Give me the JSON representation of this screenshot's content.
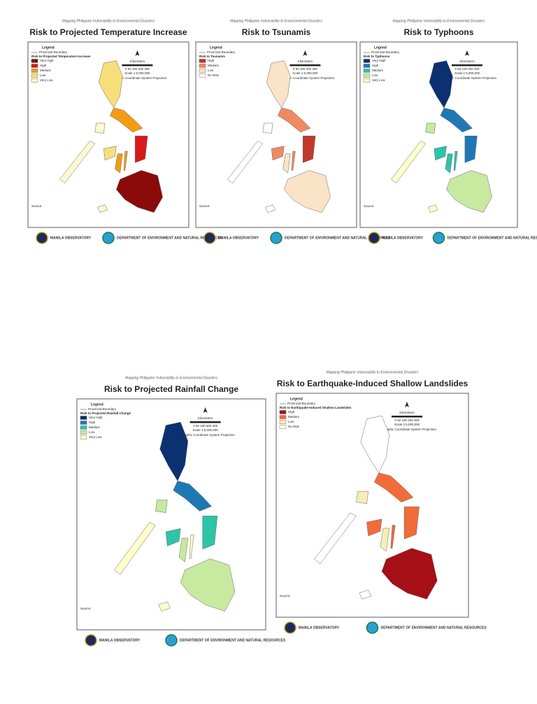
{
  "panels": [
    {
      "header": "Mapping Philippine Vulnerability to Environmental Disasters",
      "title": "Risk to Projected Temperature Increase",
      "legend": {
        "heading": "Legend",
        "boundary": "Provincial Boundary",
        "title": "Risk to Projected Temperature Increase",
        "items": [
          {
            "label": "Very High",
            "color": "#8b0a0a"
          },
          {
            "label": "High",
            "color": "#d7191c"
          },
          {
            "label": "Medium",
            "color": "#f39c12"
          },
          {
            "label": "Low",
            "color": "#f7df7a"
          },
          {
            "label": "Very Low",
            "color": "#fdf9d2"
          }
        ]
      },
      "scale": {
        "units": "Kilometers",
        "ticks": "0 50 100 200 300",
        "ratio": "Scale 1:5,000,000",
        "projection": "Geographic Coordinate System Projection"
      },
      "source": "Source:",
      "logos": [
        "MANILA OBSERVATORY",
        "DEPARTMENT OF ENVIRONMENT AND NATURAL RESOURCES"
      ]
    },
    {
      "header": "Mapping Philippine Vulnerability to Environmental Disasters",
      "title": "Risk to Tsunamis",
      "legend": {
        "heading": "Legend",
        "boundary": "Provincial Boundary",
        "title": "Risk to Tsunamis",
        "items": [
          {
            "label": "High",
            "color": "#c0392b"
          },
          {
            "label": "Medium",
            "color": "#ef8a62"
          },
          {
            "label": "Low",
            "color": "#fbe3c8"
          },
          {
            "label": "No Risk",
            "color": "#ffffff"
          }
        ]
      },
      "scale": {
        "units": "Kilometers",
        "ticks": "0 50 100 200 300",
        "ratio": "Scale 1:5,000,000",
        "projection": "Geographic Coordinate System Projection"
      },
      "source": "Source:",
      "logos": [
        "MANILA OBSERVATORY",
        "DEPARTMENT OF ENVIRONMENT AND NATURAL RESOURCES"
      ]
    },
    {
      "header": "Mapping Philippine Vulnerability to Environmental Disasters",
      "title": "Risk to Typhoons",
      "legend": {
        "heading": "Legend",
        "boundary": "Provincial Boundary",
        "title": "Risk to Typhoons",
        "items": [
          {
            "label": "Very High",
            "color": "#0b3170"
          },
          {
            "label": "High",
            "color": "#1f78b4"
          },
          {
            "label": "Medium",
            "color": "#2ec4a6"
          },
          {
            "label": "Low",
            "color": "#c7e9a0"
          },
          {
            "label": "Very Low",
            "color": "#ffffcc"
          }
        ]
      },
      "scale": {
        "units": "Kilometers",
        "ticks": "0 50 100 200 300",
        "ratio": "Scale 1:5,000,000",
        "projection": "Geographic Coordinate System Projection"
      },
      "source": "Source:",
      "logos": [
        "MANILA OBSERVATORY",
        "DEPARTMENT OF ENVIRONMENT AND NATURAL RESOURCES"
      ]
    },
    {
      "header": "Mapping Philippine Vulnerability to Environmental Disasters",
      "title": "Risk to Projected Rainfall Change",
      "legend": {
        "heading": "Legend",
        "boundary": "Provincial Boundary",
        "title": "Risk to Projected Rainfall Change",
        "items": [
          {
            "label": "Very High",
            "color": "#0b3170"
          },
          {
            "label": "High",
            "color": "#1f78b4"
          },
          {
            "label": "Medium",
            "color": "#2ec4a6"
          },
          {
            "label": "Low",
            "color": "#c7e9a0"
          },
          {
            "label": "Very Low",
            "color": "#ffffcc"
          }
        ]
      },
      "scale": {
        "units": "Kilometers",
        "ticks": "0 50 100 200 300",
        "ratio": "Scale 1:5,000,000",
        "projection": "Geographic Coordinate System Projection"
      },
      "source": "Source:",
      "logos": [
        "MANILA OBSERVATORY",
        "DEPARTMENT OF ENVIRONMENT AND NATURAL RESOURCES"
      ]
    },
    {
      "header": "Mapping Philippine Vulnerability to Environmental Disasters",
      "title": "Risk to Earthquake-Induced Shallow Landslides",
      "legend": {
        "heading": "Legend",
        "boundary": "Provincial Boundary",
        "title": "Risk to Earthquake-Induced Shallow Landslides",
        "items": [
          {
            "label": "High",
            "color": "#a50f15"
          },
          {
            "label": "Medium",
            "color": "#f26b3a"
          },
          {
            "label": "Low",
            "color": "#f7eeb5"
          },
          {
            "label": "No Risk",
            "color": "#ffffff"
          }
        ]
      },
      "scale": {
        "units": "Kilometers",
        "ticks": "0 50 100 200 300",
        "ratio": "Scale 1:5,000,000",
        "projection": "Geographic Coordinate System Projection"
      },
      "source": "Source:",
      "logos": [
        "MANILA OBSERVATORY",
        "DEPARTMENT OF ENVIRONMENT AND NATURAL RESOURCES"
      ]
    }
  ]
}
